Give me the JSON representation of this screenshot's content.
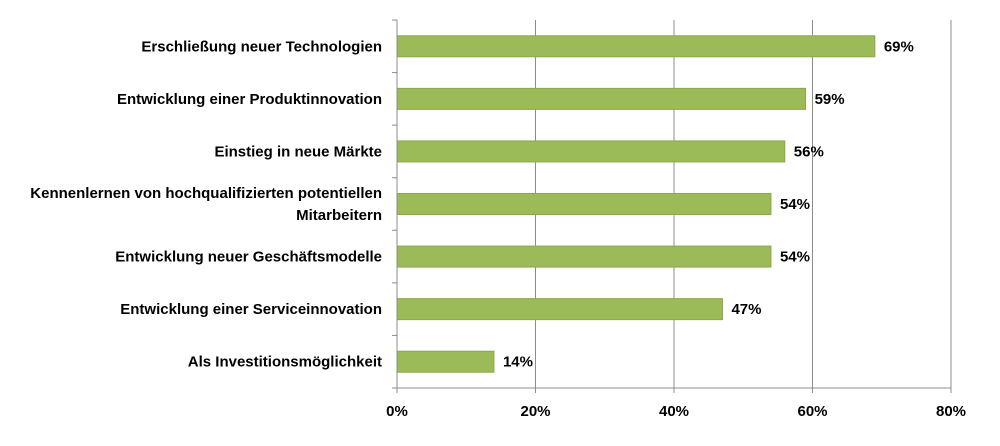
{
  "chart_data": {
    "type": "bar",
    "orientation": "horizontal",
    "title": "",
    "xlabel": "",
    "ylabel": "",
    "categories": [
      "Erschließung neuer Technologien",
      "Entwicklung einer Produktinnovation",
      "Einstieg in neue Märkte",
      "Kennenlernen von hochqualifizierten potentiellen Mitarbeitern",
      "Entwicklung neuer Geschäftsmodelle",
      "Entwicklung einer Serviceinnovation",
      "Als Investitionsmöglichkeit"
    ],
    "category_lines": [
      [
        "Erschließung neuer Technologien"
      ],
      [
        "Entwicklung einer Produktinnovation"
      ],
      [
        "Einstieg in neue Märkte"
      ],
      [
        "Kennenlernen von hochqualifizierten potentiellen",
        "Mitarbeitern"
      ],
      [
        "Entwicklung neuer Geschäftsmodelle"
      ],
      [
        "Entwicklung einer Serviceinnovation"
      ],
      [
        "Als Investitionsmöglichkeit"
      ]
    ],
    "values": [
      69,
      59,
      56,
      54,
      54,
      47,
      14
    ],
    "value_labels": [
      "69%",
      "59%",
      "56%",
      "54%",
      "54%",
      "47%",
      "14%"
    ],
    "xlim": [
      0,
      80
    ],
    "xticks": [
      0,
      20,
      40,
      60,
      80
    ],
    "xtick_labels": [
      "0%",
      "20%",
      "40%",
      "60%",
      "80%"
    ],
    "grid": "vertical",
    "legend": "none",
    "colors": {
      "bar": "#9bbb59",
      "bar_border": "#8aa84a",
      "grid": "#8c8c8c",
      "axis": "#8c8c8c"
    }
  }
}
